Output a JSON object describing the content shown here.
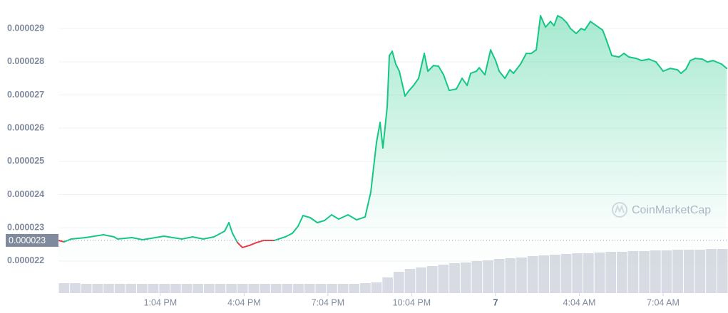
{
  "chart_data": {
    "type": "area",
    "watermark": "CoinMarketCap",
    "xlim": [
      9.42,
      33.39
    ],
    "ylim": [
      2.129e-05,
      2.986e-05
    ],
    "yticks": [
      2.2e-05,
      2.3e-05,
      2.4e-05,
      2.5e-05,
      2.6e-05,
      2.7e-05,
      2.8e-05,
      2.9e-05
    ],
    "xticks": [
      {
        "value": 13.067,
        "label": "1:04 PM"
      },
      {
        "value": 16.067,
        "label": "4:04 PM"
      },
      {
        "value": 19.067,
        "label": "7:04 PM"
      },
      {
        "value": 22.067,
        "label": "10:04 PM"
      },
      {
        "value": 25.067,
        "label": "7"
      },
      {
        "value": 28.067,
        "label": "4:04 AM"
      },
      {
        "value": 31.067,
        "label": "7:04 AM"
      }
    ],
    "grid": true,
    "current_price": {
      "value": 2.262e-05,
      "label": "0.000023"
    },
    "series": [
      {
        "color": "#16c784",
        "down_color": "#ea3943",
        "x": [
          9.42,
          9.624,
          9.88,
          10.39,
          11.028,
          11.411,
          11.539,
          12.05,
          12.433,
          13.198,
          13.837,
          14.22,
          14.603,
          14.985,
          15.368,
          15.522,
          15.649,
          15.828,
          16.007,
          16.262,
          16.517,
          16.773,
          17.156,
          17.539,
          17.794,
          17.998,
          18.177,
          18.432,
          18.687,
          18.943,
          19.198,
          19.453,
          19.785,
          20.091,
          20.398,
          20.602,
          20.806,
          20.934,
          21.036,
          21.189,
          21.266,
          21.368,
          21.496,
          21.623,
          21.827,
          21.955,
          22.134,
          22.313,
          22.389,
          22.517,
          22.645,
          22.849,
          23.028,
          23.206,
          23.41,
          23.666,
          23.87,
          24.049,
          24.177,
          24.381,
          24.483,
          24.687,
          24.891,
          25.07,
          25.198,
          25.402,
          25.58,
          25.708,
          25.963,
          26.168,
          26.346,
          26.525,
          26.678,
          26.857,
          27.035,
          27.163,
          27.291,
          27.444,
          27.623,
          27.75,
          27.955,
          28.133,
          28.261,
          28.465,
          28.644,
          28.899,
          29.027,
          29.231,
          29.486,
          29.665,
          29.844,
          30.099,
          30.303,
          30.559,
          30.814,
          31.069,
          31.325,
          31.58,
          31.708,
          31.886,
          32.04,
          32.218,
          32.474,
          32.652,
          32.856,
          33.163,
          33.342
        ],
        "values": [
          2.2619e-05,
          2.2576e-05,
          2.2662e-05,
          2.2704e-05,
          2.279e-05,
          2.2726e-05,
          2.2662e-05,
          2.2704e-05,
          2.264e-05,
          2.2747e-05,
          2.2662e-05,
          2.2726e-05,
          2.2662e-05,
          2.2726e-05,
          2.2897e-05,
          2.3154e-05,
          2.2833e-05,
          2.2555e-05,
          2.2405e-05,
          2.2469e-05,
          2.2555e-05,
          2.2619e-05,
          2.2619e-05,
          2.2726e-05,
          2.2833e-05,
          2.3047e-05,
          2.3368e-05,
          2.3304e-05,
          2.3154e-05,
          2.3218e-05,
          2.339e-05,
          2.3261e-05,
          2.339e-05,
          2.324e-05,
          2.3325e-05,
          2.4075e-05,
          2.5574e-05,
          2.6173e-05,
          2.5403e-05,
          2.6645e-05,
          2.8186e-05,
          2.8315e-05,
          2.7929e-05,
          2.7715e-05,
          2.6966e-05,
          2.7116e-05,
          2.7287e-05,
          2.7501e-05,
          2.7779e-05,
          2.8251e-05,
          2.7715e-05,
          2.7887e-05,
          2.7865e-05,
          2.7608e-05,
          2.7137e-05,
          2.718e-05,
          2.7501e-05,
          2.7287e-05,
          2.7651e-05,
          2.7715e-05,
          2.7822e-05,
          2.7608e-05,
          2.8358e-05,
          2.8036e-05,
          2.7715e-05,
          2.7501e-05,
          2.7758e-05,
          2.7651e-05,
          2.7929e-05,
          2.8251e-05,
          2.8251e-05,
          2.8358e-05,
          2.9385e-05,
          2.9043e-05,
          2.9214e-05,
          2.9086e-05,
          2.9385e-05,
          2.9321e-05,
          2.9171e-05,
          2.9e-05,
          2.885e-05,
          2.9e-05,
          2.8957e-05,
          2.9214e-05,
          2.9107e-05,
          2.8957e-05,
          2.8679e-05,
          2.8186e-05,
          2.8143e-05,
          2.8251e-05,
          2.8143e-05,
          2.8101e-05,
          2.8036e-05,
          2.8079e-05,
          2.7994e-05,
          2.7715e-05,
          2.7801e-05,
          2.7758e-05,
          2.7651e-05,
          2.7779e-05,
          2.8036e-05,
          2.8101e-05,
          2.8079e-05,
          2.7994e-05,
          2.8036e-05,
          2.7929e-05,
          2.7801e-05
        ]
      }
    ],
    "volume": {
      "color": "#d8dbe3",
      "values": [
        14,
        14,
        13,
        13,
        13,
        13,
        13,
        13,
        13,
        13,
        13,
        13,
        13,
        13,
        13,
        13,
        13,
        13,
        13,
        13,
        13,
        13,
        13,
        13,
        13,
        13,
        13,
        14,
        15,
        22,
        30,
        34,
        36,
        38,
        40,
        42,
        43,
        45,
        46,
        48,
        49,
        50,
        52,
        53,
        54,
        55,
        56,
        56,
        57,
        58,
        58,
        59,
        59,
        60,
        60,
        61,
        61,
        61,
        62,
        62
      ]
    }
  }
}
